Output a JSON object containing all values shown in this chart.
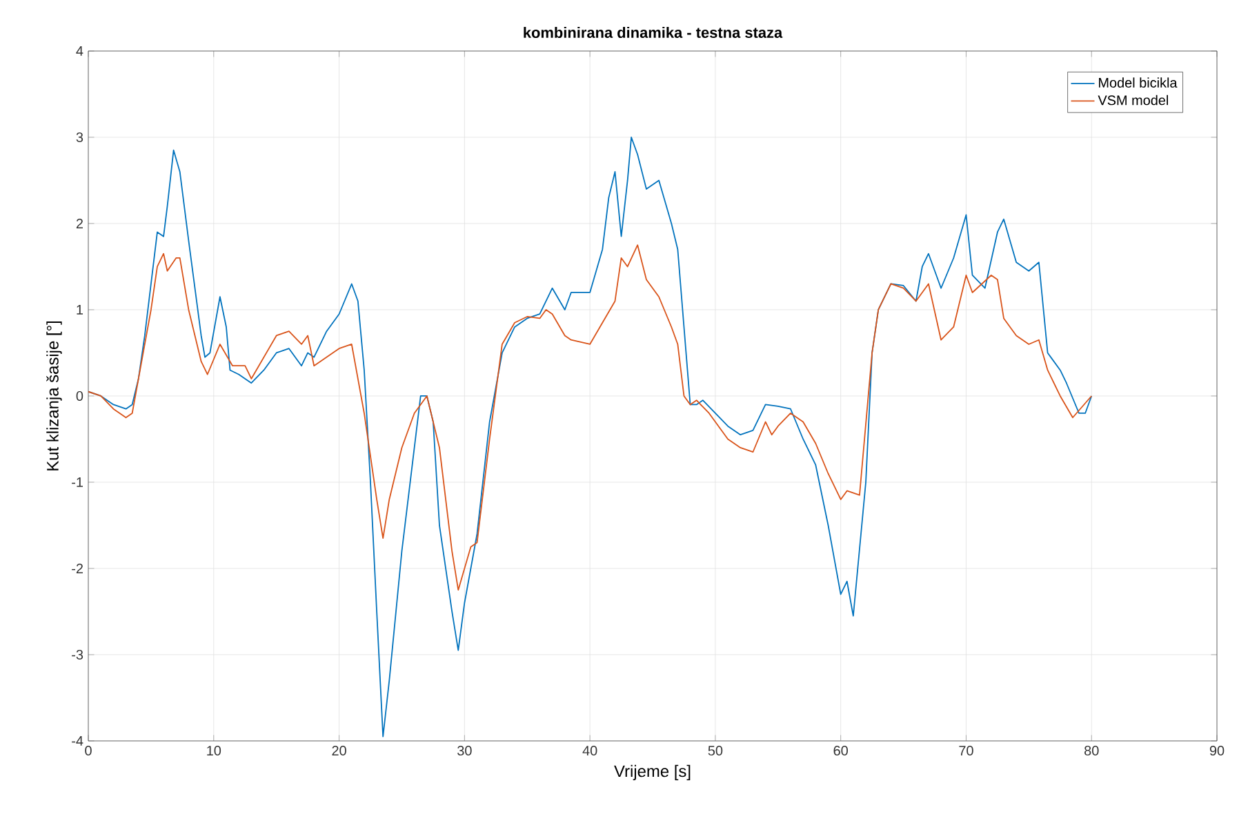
{
  "chart_data": {
    "type": "line",
    "title": "kombinirana dinamika - testna staza",
    "xlabel": "Vrijeme [s]",
    "ylabel": "Kut klizanja šasije [°]",
    "xlim": [
      0,
      90
    ],
    "ylim": [
      -4,
      4
    ],
    "xticks": [
      0,
      10,
      20,
      30,
      40,
      50,
      60,
      70,
      80,
      90
    ],
    "yticks": [
      -4,
      -3,
      -2,
      -1,
      0,
      1,
      2,
      3,
      4
    ],
    "grid": true,
    "legend": "top right",
    "marker": "none",
    "line_style": "solid",
    "series": [
      {
        "name": "Model bicikla",
        "color": "#0072bd",
        "x": [
          0,
          1,
          2,
          3,
          3.5,
          4,
          4.5,
          5,
          5.5,
          6,
          6.3,
          6.8,
          7.3,
          8,
          9,
          9.3,
          9.7,
          10.5,
          11,
          11.3,
          12,
          13,
          14,
          15,
          16,
          17,
          17.5,
          18,
          19,
          20,
          21,
          21.5,
          22,
          22.5,
          23,
          23.5,
          24,
          25,
          26,
          26.5,
          27,
          27.5,
          28,
          29,
          29.5,
          30,
          31,
          32,
          33,
          34,
          35,
          36,
          36.5,
          37,
          38,
          38.5,
          40,
          41,
          41.5,
          42,
          42.5,
          43,
          43.3,
          43.8,
          44.5,
          45.5,
          46.5,
          47,
          47.5,
          48,
          48.5,
          49,
          50,
          51,
          52,
          53,
          54,
          55,
          56,
          57,
          58,
          59,
          60,
          60.5,
          61,
          62,
          62.5,
          63,
          64,
          65,
          66,
          66.5,
          67,
          68,
          69,
          70,
          70.5,
          71.5,
          72.5,
          73,
          74,
          75,
          75.8,
          76.5,
          77.5,
          78,
          79,
          79.5,
          80
        ],
        "values": [
          0.05,
          0.0,
          -0.1,
          -0.15,
          -0.1,
          0.2,
          0.7,
          1.3,
          1.9,
          1.85,
          2.2,
          2.85,
          2.6,
          1.8,
          0.7,
          0.45,
          0.5,
          1.15,
          0.8,
          0.3,
          0.25,
          0.15,
          0.3,
          0.5,
          0.55,
          0.35,
          0.5,
          0.45,
          0.75,
          0.95,
          1.3,
          1.1,
          0.3,
          -1.0,
          -2.5,
          -3.95,
          -3.3,
          -1.8,
          -0.6,
          0.0,
          0.0,
          -0.3,
          -1.5,
          -2.5,
          -2.95,
          -2.4,
          -1.6,
          -0.3,
          0.5,
          0.8,
          0.9,
          0.95,
          1.1,
          1.25,
          1.0,
          1.2,
          1.2,
          1.7,
          2.3,
          2.6,
          1.85,
          2.5,
          3.0,
          2.8,
          2.4,
          2.5,
          2.0,
          1.7,
          0.8,
          -0.1,
          -0.1,
          -0.05,
          -0.2,
          -0.35,
          -0.45,
          -0.4,
          -0.1,
          -0.12,
          -0.15,
          -0.5,
          -0.8,
          -1.5,
          -2.3,
          -2.15,
          -2.55,
          -1.0,
          0.5,
          1.0,
          1.3,
          1.28,
          1.1,
          1.5,
          1.65,
          1.25,
          1.6,
          2.1,
          1.4,
          1.25,
          1.9,
          2.05,
          1.55,
          1.45,
          1.55,
          0.5,
          0.3,
          0.15,
          -0.2,
          -0.2,
          0.0
        ]
      },
      {
        "name": "VSM model",
        "color": "#d95319",
        "x": [
          0,
          1,
          2,
          3,
          3.5,
          4,
          5,
          5.5,
          6,
          6.3,
          7,
          7.3,
          8,
          9,
          9.5,
          10.5,
          11.5,
          12.5,
          13,
          14,
          15,
          16,
          17,
          17.5,
          18,
          19,
          20,
          21,
          22,
          23,
          23.5,
          24,
          25,
          26,
          27,
          28,
          29,
          29.5,
          30,
          30.5,
          31,
          32,
          33,
          34,
          35,
          36,
          36.5,
          37,
          38,
          38.5,
          40,
          41,
          42,
          42.5,
          43,
          43.8,
          44.5,
          45.5,
          46.5,
          47,
          47.5,
          48,
          48.5,
          49.5,
          51,
          52,
          53,
          54,
          54.5,
          55,
          56,
          57,
          58,
          59,
          60,
          60.5,
          61.5,
          62.5,
          63,
          64,
          65,
          66,
          67,
          68,
          69,
          70,
          70.5,
          72,
          72.5,
          73,
          74,
          75,
          75.8,
          76.5,
          77.5,
          78.5,
          80
        ],
        "values": [
          0.05,
          0.0,
          -0.15,
          -0.25,
          -0.2,
          0.2,
          1.0,
          1.5,
          1.65,
          1.45,
          1.6,
          1.6,
          1.0,
          0.4,
          0.25,
          0.6,
          0.35,
          0.35,
          0.2,
          0.45,
          0.7,
          0.75,
          0.6,
          0.7,
          0.35,
          0.45,
          0.55,
          0.6,
          -0.2,
          -1.2,
          -1.65,
          -1.2,
          -0.6,
          -0.2,
          0.0,
          -0.6,
          -1.8,
          -2.25,
          -2.0,
          -1.75,
          -1.7,
          -0.5,
          0.6,
          0.85,
          0.92,
          0.9,
          1.0,
          0.95,
          0.7,
          0.65,
          0.6,
          0.85,
          1.1,
          1.6,
          1.5,
          1.75,
          1.35,
          1.15,
          0.8,
          0.6,
          0.0,
          -0.1,
          -0.05,
          -0.2,
          -0.5,
          -0.6,
          -0.65,
          -0.3,
          -0.45,
          -0.35,
          -0.2,
          -0.3,
          -0.55,
          -0.9,
          -1.2,
          -1.1,
          -1.15,
          0.5,
          1.0,
          1.3,
          1.25,
          1.1,
          1.3,
          0.65,
          0.8,
          1.4,
          1.2,
          1.4,
          1.35,
          0.9,
          0.7,
          0.6,
          0.65,
          0.3,
          0.0,
          -0.25,
          0.0
        ]
      }
    ]
  }
}
